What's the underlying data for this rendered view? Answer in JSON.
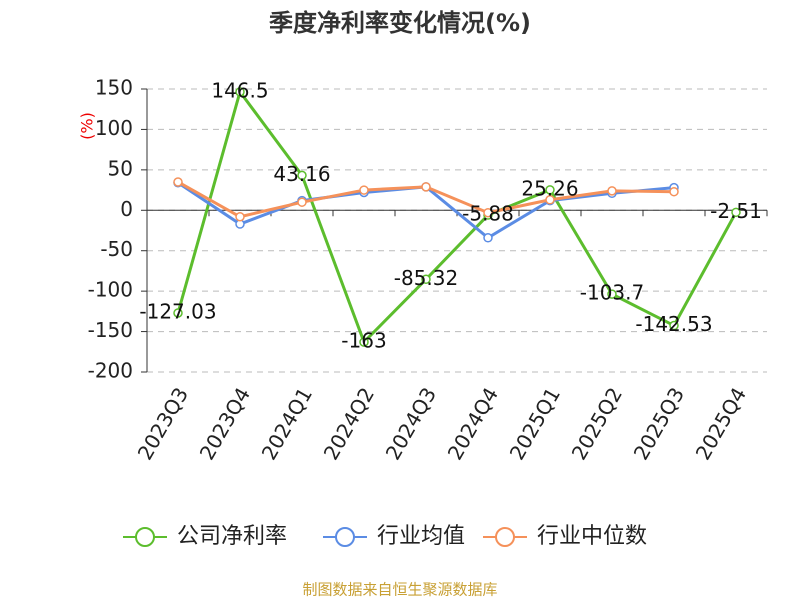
{
  "chart_data": {
    "type": "line",
    "title": "季度净利率变化情况(%)",
    "y_label": "(%)",
    "source": "制图数据来自恒生聚源数据库",
    "categories": [
      "2023Q3",
      "2023Q4",
      "2024Q1",
      "2024Q2",
      "2024Q3",
      "2024Q4",
      "2025Q1",
      "2025Q2",
      "2025Q3",
      "2025Q4"
    ],
    "series": [
      {
        "name": "公司净利率",
        "color": "#5cbd2d",
        "values": [
          -127.03,
          146.5,
          43.16,
          -163,
          -85.32,
          -5.88,
          25.26,
          -103.7,
          -142.53,
          -2.51
        ]
      },
      {
        "name": "行业均值",
        "color": "#5b8ce4",
        "values": [
          34,
          -17,
          12,
          22,
          29,
          -34,
          12,
          21,
          28,
          null
        ]
      },
      {
        "name": "行业中位数",
        "color": "#f5915a",
        "values": [
          35,
          -8,
          10,
          25,
          29,
          -3,
          13,
          24,
          23,
          null
        ]
      }
    ],
    "ylim": [
      -200,
      150
    ],
    "yticks": [
      -200,
      -150,
      -100,
      -50,
      0,
      50,
      100,
      150
    ],
    "grid": true,
    "legend": "bottom"
  }
}
